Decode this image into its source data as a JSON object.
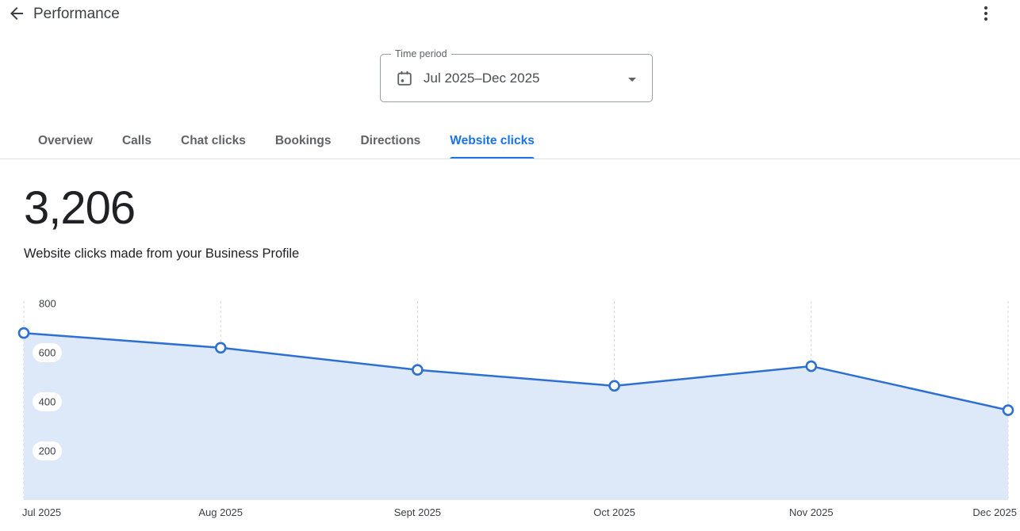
{
  "header": {
    "title": "Performance",
    "back_icon": "arrow-left",
    "menu_icon": "kebab-menu"
  },
  "time_period": {
    "label": "Time period",
    "value": "Jul 2025–Dec 2025",
    "icon": "calendar"
  },
  "tabs": [
    {
      "label": "Overview",
      "active": false
    },
    {
      "label": "Calls",
      "active": false
    },
    {
      "label": "Chat clicks",
      "active": false
    },
    {
      "label": "Bookings",
      "active": false
    },
    {
      "label": "Directions",
      "active": false
    },
    {
      "label": "Website clicks",
      "active": true
    }
  ],
  "metric": {
    "value": "3,206",
    "description": "Website clicks made from your Business Profile"
  },
  "chart_data": {
    "type": "area",
    "title": "Website clicks by month",
    "x": [
      "Jul 2025",
      "Aug 2025",
      "Sept 2025",
      "Oct 2025",
      "Nov 2025",
      "Dec 2025"
    ],
    "values": [
      680,
      620,
      530,
      465,
      545,
      366
    ],
    "ylim": [
      0,
      800
    ],
    "yticks": [
      200,
      400,
      600,
      800
    ],
    "grid": "vertical-dashed",
    "legend": "none",
    "line_color": "#2e70d2",
    "fill_color": "#dde8f8",
    "grid_color": "#d5d7da",
    "tick_color": "#3c4043",
    "marker": "circle-open"
  },
  "colors": {
    "accent": "#1a73e8",
    "text_dark": "#202124",
    "text_gray": "#5f6368",
    "divider": "#e0e0e0"
  }
}
